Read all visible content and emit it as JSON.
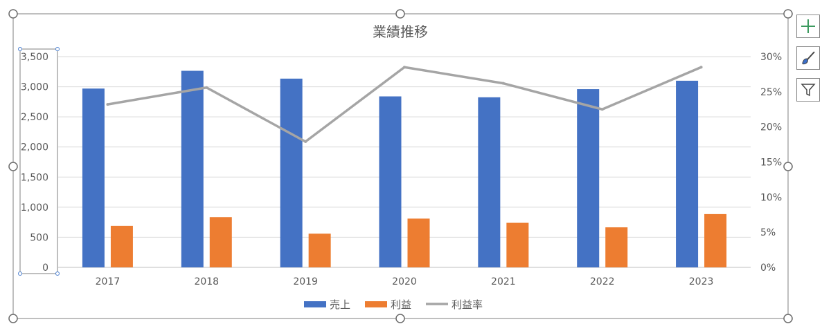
{
  "chart_data": {
    "type": "bar",
    "title": "業績推移",
    "categories": [
      "2017",
      "2018",
      "2019",
      "2020",
      "2021",
      "2022",
      "2023"
    ],
    "series": [
      {
        "name": "売上",
        "type": "bar",
        "axis": "left",
        "color": "#4472C4",
        "values": [
          2970,
          3265,
          3135,
          2840,
          2825,
          2960,
          3100
        ]
      },
      {
        "name": "利益",
        "type": "bar",
        "axis": "left",
        "color": "#ED7D31",
        "values": [
          690,
          835,
          560,
          810,
          740,
          665,
          885
        ]
      },
      {
        "name": "利益率",
        "type": "line",
        "axis": "right",
        "color": "#A5A5A5",
        "values": [
          0.232,
          0.256,
          0.179,
          0.285,
          0.262,
          0.225,
          0.285
        ]
      }
    ],
    "y_left": {
      "min": 0,
      "max": 3500,
      "step": 500,
      "tick_labels": [
        "0",
        "500",
        "1,000",
        "1,500",
        "2,000",
        "2,500",
        "3,000",
        "3,500"
      ]
    },
    "y_right": {
      "min": 0,
      "max": 0.3,
      "step": 0.05,
      "tick_labels": [
        "0%",
        "5%",
        "10%",
        "15%",
        "20%",
        "25%",
        "30%"
      ]
    },
    "grid": true,
    "legend": "bottom"
  },
  "toolbar": {
    "elements_icon": "plus-icon",
    "styles_icon": "brush-icon",
    "filters_icon": "funnel-icon"
  }
}
